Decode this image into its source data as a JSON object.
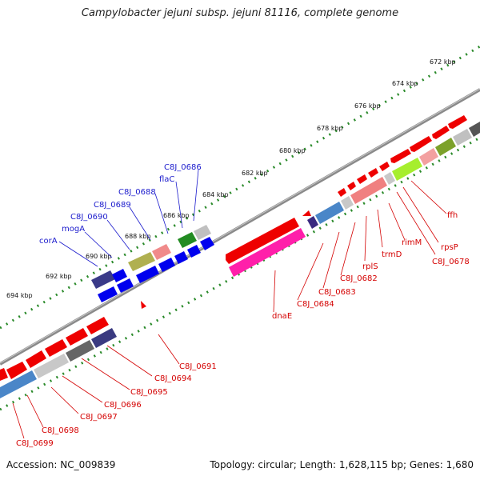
{
  "title": "Campylobacter jejuni subsp. jejuni 81116, complete genome",
  "footer": {
    "accession": "Accession: NC_009839",
    "summary": "Topology: circular; Length: 1,628,115 bp; Genes: 1,680"
  },
  "scale_labels": [
    "672 kbp",
    "674 kbp",
    "676 kbp",
    "678 kbp",
    "680 kbp",
    "682 kbp",
    "684 kbp",
    "686 kbp",
    "688 kbp",
    "690 kbp",
    "692 kbp",
    "694 kbp"
  ],
  "genes_forward": [
    "corA",
    "mogA",
    "C8J_0690",
    "C8J_0689",
    "C8J_0688",
    "flaC",
    "C8J_0686"
  ],
  "genes_reverse": [
    "ffh",
    "rpsP",
    "C8J_0678",
    "rimM",
    "trmD",
    "rplS",
    "C8J_0682",
    "C8J_0683",
    "C8J_0684",
    "dnaE",
    "C8J_0691",
    "C8J_0694",
    "C8J_0695",
    "C8J_0696",
    "C8J_0697",
    "C8J_0698",
    "C8J_0699"
  ],
  "colors": {
    "reverse_gene": "#ee0000",
    "forward_gene": "#0000ee",
    "backbone": "#909090",
    "scale_ticks": "#2a8a2a",
    "label_red": "#d40000",
    "label_blue": "#1a1acc"
  }
}
